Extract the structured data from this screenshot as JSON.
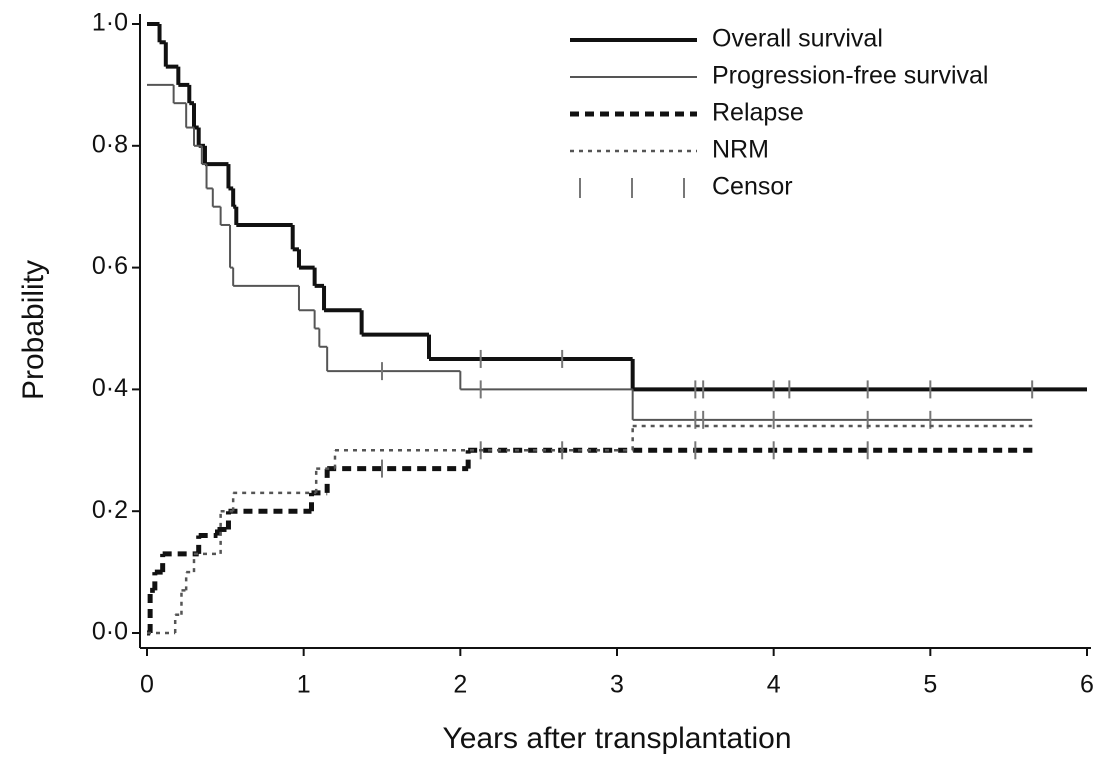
{
  "chart_data": {
    "type": "line",
    "drawstyle": "steps-post",
    "xlabel": "Years after transplantation",
    "ylabel": "Probability",
    "xlim": [
      0,
      6
    ],
    "xticks": [
      0,
      1,
      2,
      3,
      4,
      5,
      6
    ],
    "ylim": [
      0,
      1
    ],
    "yticks": [
      {
        "value": 0,
        "label": "0·0"
      },
      {
        "value": 0.2,
        "label": "0·2"
      },
      {
        "value": 0.4,
        "label": "0·4"
      },
      {
        "value": 0.6,
        "label": "0·6"
      },
      {
        "value": 0.8,
        "label": "0·8"
      },
      {
        "value": 1,
        "label": "1·0"
      }
    ],
    "legend": "upper right",
    "censor_label": "Censor",
    "series": [
      {
        "name": "Overall survival",
        "color": "#111111",
        "linewidth": 4,
        "linestyle": "solid",
        "x": [
          0,
          0.08,
          0.12,
          0.2,
          0.27,
          0.3,
          0.33,
          0.37,
          0.52,
          0.55,
          0.57,
          0.93,
          0.97,
          1.07,
          1.13,
          1.37,
          1.8,
          3.1,
          6
        ],
        "values": [
          1.0,
          0.97,
          0.93,
          0.9,
          0.87,
          0.83,
          0.8,
          0.77,
          0.73,
          0.7,
          0.67,
          0.63,
          0.6,
          0.57,
          0.53,
          0.49,
          0.45,
          0.4,
          0.4
        ],
        "censor": [
          2.13,
          2.65,
          3.5,
          3.55,
          4.0,
          4.1,
          4.6,
          5.0,
          5.65
        ]
      },
      {
        "name": "Progression-free survival",
        "color": "#555555",
        "linewidth": 2,
        "linestyle": "solid",
        "x": [
          0,
          0.17,
          0.25,
          0.3,
          0.35,
          0.38,
          0.42,
          0.47,
          0.53,
          0.55,
          0.97,
          1.07,
          1.1,
          1.15,
          2.0,
          3.1,
          5.65
        ],
        "values": [
          0.9,
          0.87,
          0.83,
          0.8,
          0.77,
          0.73,
          0.7,
          0.67,
          0.6,
          0.57,
          0.53,
          0.5,
          0.47,
          0.43,
          0.4,
          0.35,
          0.35
        ],
        "censor": [
          1.5,
          2.13,
          3.5,
          3.55,
          4.0,
          4.6,
          5.0
        ]
      },
      {
        "name": "Relapse",
        "color": "#111111",
        "linewidth": 5,
        "linestyle": "dashed",
        "x": [
          0,
          0.02,
          0.05,
          0.1,
          0.33,
          0.45,
          0.52,
          1.05,
          1.15,
          2.05,
          5.65
        ],
        "values": [
          0,
          0.07,
          0.1,
          0.13,
          0.16,
          0.17,
          0.2,
          0.23,
          0.27,
          0.3,
          0.3
        ],
        "censor": [
          1.5,
          2.13,
          2.65,
          3.5,
          4.0,
          4.6
        ]
      },
      {
        "name": "NRM",
        "color": "#555555",
        "linewidth": 2.5,
        "linestyle": "dotted",
        "x": [
          0,
          0.18,
          0.22,
          0.25,
          0.3,
          0.47,
          0.55,
          1.08,
          1.2,
          3.1,
          5.65
        ],
        "values": [
          0,
          0.03,
          0.07,
          0.1,
          0.13,
          0.2,
          0.23,
          0.27,
          0.3,
          0.34,
          0.34
        ],
        "censor": []
      }
    ]
  }
}
